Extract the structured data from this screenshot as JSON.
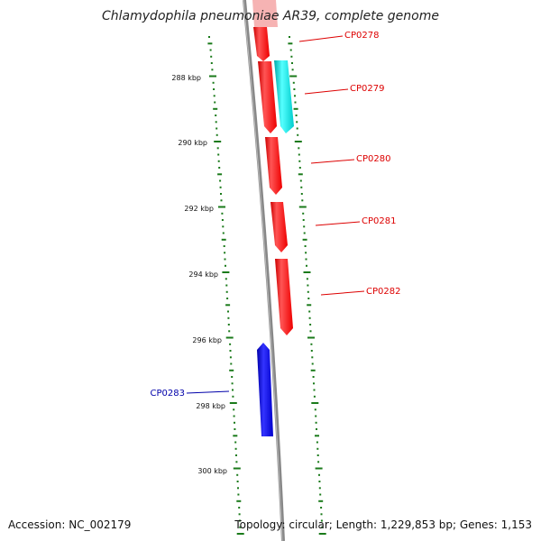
{
  "title": "Chlamydophila pneumoniae AR39, complete genome",
  "footer": {
    "accession": "Accession: NC_002179",
    "summary": "Topology: circular; Length: 1,229,853 bp; Genes: 1,153"
  },
  "colors": {
    "forward_gene": "#ff0000",
    "reverse_gene": "#0000cc",
    "other_feature": "#00cccc",
    "ticks": "#1a7a1a",
    "backbone": "#888888"
  },
  "ticks": [
    "288 kbp",
    "290 kbp",
    "292 kbp",
    "294 kbp",
    "296 kbp",
    "298 kbp",
    "300 kbp"
  ],
  "genes": [
    {
      "label": "CP0278",
      "strand": "forward"
    },
    {
      "label": "CP0279",
      "strand": "forward"
    },
    {
      "label": "CP0280",
      "strand": "forward"
    },
    {
      "label": "CP0281",
      "strand": "forward"
    },
    {
      "label": "CP0282",
      "strand": "forward"
    },
    {
      "label": "CP0283",
      "strand": "reverse"
    }
  ]
}
